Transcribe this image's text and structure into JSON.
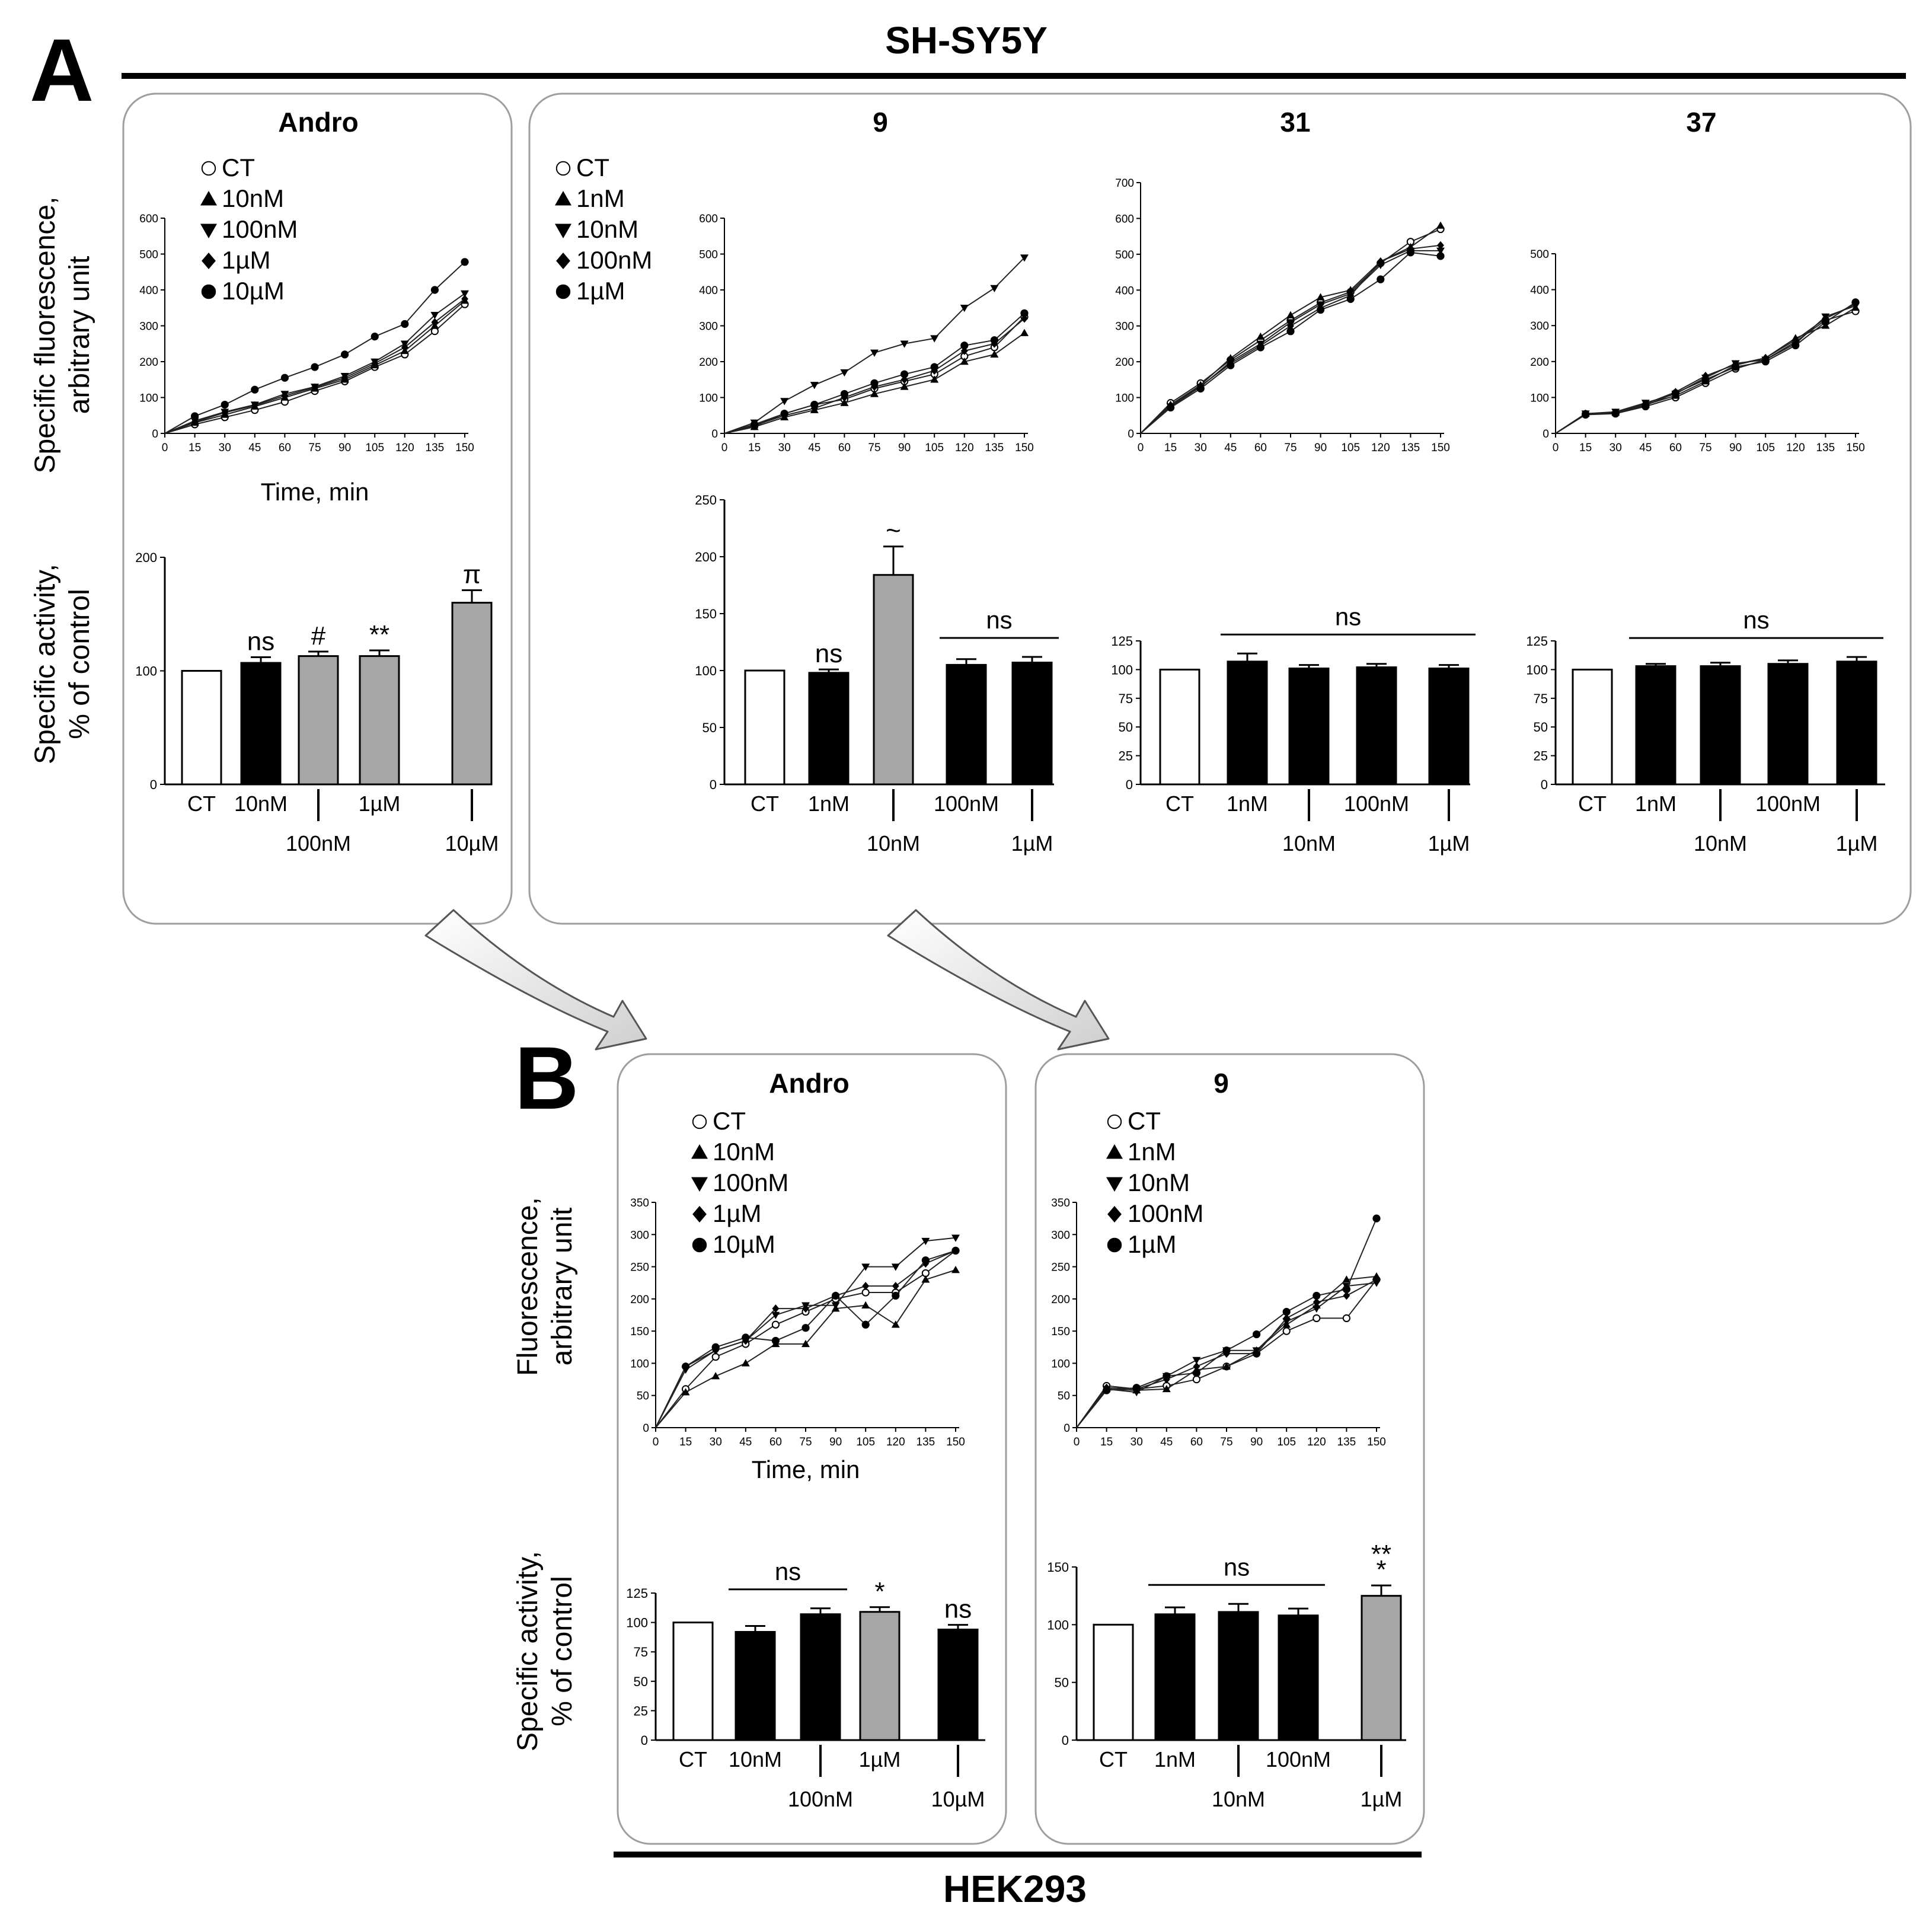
{
  "figure": {
    "label_a": "A",
    "label_b": "B",
    "cell_a": "SH-SY5Y",
    "cell_b": "HEK293"
  },
  "axis_labels": {
    "a_line_y1": "Specific fluorescence,",
    "a_line_y2": "arbitrary unit",
    "a_bar_y1": "Specific activity,",
    "a_bar_y2": "% of control",
    "b_line_y1": "Fluorescence,",
    "b_line_y2": "arbitrary unit",
    "b_bar_y1": "Specific activity,",
    "b_bar_y2": "% of control",
    "time": "Time, min"
  },
  "colors": {
    "ct": "#ffffff",
    "black": "#000000",
    "grey": "#a6a6a6",
    "panel_border": "#9e9e9e"
  },
  "chart_data": [
    {
      "id": "A_andro_line",
      "type": "line",
      "title": "Andro",
      "xlabel": "Time, min",
      "ylabel": "Specific fluorescence, arbitrary unit",
      "x": [
        0,
        15,
        30,
        45,
        60,
        75,
        90,
        105,
        120,
        135,
        150
      ],
      "xlim": [
        0,
        150
      ],
      "ylim": [
        0,
        600
      ],
      "yticks": [
        0,
        100,
        200,
        300,
        400,
        500,
        600
      ],
      "series": [
        {
          "name": "CT",
          "marker": "circle-open",
          "values": [
            0,
            25,
            45,
            65,
            88,
            118,
            145,
            185,
            220,
            285,
            360
          ]
        },
        {
          "name": "10nM",
          "marker": "triangle-up",
          "values": [
            0,
            30,
            52,
            75,
            100,
            125,
            150,
            190,
            230,
            300,
            370
          ]
        },
        {
          "name": "100nM",
          "marker": "triangle-down",
          "values": [
            0,
            35,
            60,
            80,
            110,
            130,
            160,
            200,
            250,
            330,
            390
          ]
        },
        {
          "name": "1µM",
          "marker": "diamond",
          "values": [
            0,
            32,
            58,
            78,
            105,
            128,
            155,
            195,
            240,
            310,
            375
          ]
        },
        {
          "name": "10µM",
          "marker": "circle-filled",
          "values": [
            0,
            48,
            80,
            122,
            155,
            185,
            220,
            270,
            305,
            400,
            478
          ]
        }
      ]
    },
    {
      "id": "A_9_line",
      "type": "line",
      "title": "9",
      "x": [
        0,
        15,
        30,
        45,
        60,
        75,
        90,
        105,
        120,
        135,
        150
      ],
      "xlim": [
        0,
        150
      ],
      "ylim": [
        0,
        600
      ],
      "yticks": [
        0,
        100,
        200,
        300,
        400,
        500,
        600
      ],
      "series": [
        {
          "name": "CT",
          "marker": "circle-open",
          "values": [
            0,
            20,
            55,
            80,
            95,
            125,
            145,
            165,
            215,
            240,
            325
          ]
        },
        {
          "name": "1nM",
          "marker": "triangle-up",
          "values": [
            0,
            18,
            45,
            65,
            85,
            110,
            130,
            150,
            200,
            220,
            280
          ]
        },
        {
          "name": "10nM",
          "marker": "triangle-down",
          "values": [
            0,
            30,
            90,
            135,
            170,
            225,
            250,
            265,
            350,
            405,
            490
          ]
        },
        {
          "name": "100nM",
          "marker": "diamond",
          "values": [
            0,
            22,
            50,
            70,
            100,
            130,
            150,
            175,
            230,
            250,
            320
          ]
        },
        {
          "name": "1µM",
          "marker": "circle-filled",
          "values": [
            0,
            25,
            55,
            80,
            110,
            140,
            165,
            185,
            245,
            260,
            335
          ]
        }
      ]
    },
    {
      "id": "A_31_line",
      "type": "line",
      "title": "31",
      "x": [
        0,
        15,
        30,
        45,
        60,
        75,
        90,
        105,
        120,
        135,
        150
      ],
      "xlim": [
        0,
        150
      ],
      "ylim": [
        0,
        700
      ],
      "yticks": [
        0,
        100,
        200,
        300,
        400,
        500,
        600,
        700
      ],
      "series": [
        {
          "name": "CT",
          "marker": "circle-open",
          "values": [
            0,
            85,
            140,
            205,
            260,
            315,
            365,
            395,
            475,
            535,
            570
          ]
        },
        {
          "name": "1nM",
          "marker": "triangle-up",
          "values": [
            0,
            80,
            135,
            210,
            270,
            330,
            380,
            400,
            480,
            520,
            580
          ]
        },
        {
          "name": "10nM",
          "marker": "triangle-down",
          "values": [
            0,
            75,
            130,
            200,
            250,
            310,
            360,
            390,
            470,
            510,
            510
          ]
        },
        {
          "name": "100nM",
          "marker": "diamond",
          "values": [
            0,
            78,
            132,
            195,
            245,
            300,
            350,
            385,
            480,
            515,
            525
          ]
        },
        {
          "name": "1µM",
          "marker": "circle-filled",
          "values": [
            0,
            72,
            125,
            190,
            240,
            285,
            345,
            375,
            430,
            505,
            495
          ]
        }
      ]
    },
    {
      "id": "A_37_line",
      "type": "line",
      "title": "37",
      "x": [
        0,
        15,
        30,
        45,
        60,
        75,
        90,
        105,
        120,
        135,
        150
      ],
      "xlim": [
        0,
        150
      ],
      "ylim": [
        0,
        500
      ],
      "yticks": [
        0,
        100,
        200,
        300,
        400,
        500
      ],
      "series": [
        {
          "name": "CT",
          "marker": "circle-open",
          "values": [
            0,
            52,
            55,
            75,
            100,
            140,
            180,
            205,
            255,
            315,
            340
          ]
        },
        {
          "name": "1nM",
          "marker": "triangle-up",
          "values": [
            0,
            55,
            58,
            80,
            105,
            145,
            190,
            210,
            265,
            300,
            350
          ]
        },
        {
          "name": "10nM",
          "marker": "triangle-down",
          "values": [
            0,
            55,
            60,
            85,
            110,
            155,
            195,
            205,
            250,
            325,
            355
          ]
        },
        {
          "name": "100nM",
          "marker": "diamond",
          "values": [
            0,
            53,
            57,
            82,
            115,
            160,
            192,
            210,
            260,
            320,
            360
          ]
        },
        {
          "name": "1µM",
          "marker": "circle-filled",
          "values": [
            0,
            54,
            56,
            78,
            112,
            150,
            185,
            200,
            245,
            310,
            365
          ]
        }
      ]
    },
    {
      "id": "A_andro_bar",
      "type": "bar",
      "ylabel": "Specific activity, % of control",
      "categories": [
        "CT",
        "10nM",
        "100nM",
        "1µM",
        "10µM"
      ],
      "ylim": [
        0,
        200
      ],
      "yticks": [
        0,
        100,
        200
      ],
      "values": [
        100,
        107,
        113,
        113,
        160
      ],
      "errors": [
        0,
        5,
        4,
        5,
        11
      ],
      "fills": [
        "ct",
        "black",
        "grey",
        "grey",
        "grey"
      ],
      "annotations": [
        "",
        "ns",
        "#",
        "**",
        "π"
      ],
      "group_labels": []
    },
    {
      "id": "A_9_bar",
      "type": "bar",
      "categories": [
        "CT",
        "1nM",
        "10nM",
        "100nM",
        "1µM"
      ],
      "ylim": [
        0,
        250
      ],
      "yticks": [
        0,
        50,
        100,
        150,
        200,
        250
      ],
      "values": [
        100,
        98,
        184,
        105,
        107
      ],
      "errors": [
        0,
        3,
        25,
        5,
        5
      ],
      "fills": [
        "ct",
        "black",
        "grey",
        "black",
        "black"
      ],
      "annotations": [
        "",
        "ns",
        "~",
        "",
        ""
      ],
      "group_labels": [
        {
          "text": "ns",
          "from": 3,
          "to": 4
        }
      ]
    },
    {
      "id": "A_31_bar",
      "type": "bar",
      "categories": [
        "CT",
        "1nM",
        "10nM",
        "100nM",
        "1µM"
      ],
      "ylim": [
        0,
        125
      ],
      "yticks": [
        0,
        25,
        50,
        75,
        100,
        125
      ],
      "values": [
        100,
        107,
        101,
        102,
        101
      ],
      "errors": [
        0,
        7,
        3,
        3,
        3
      ],
      "fills": [
        "ct",
        "black",
        "black",
        "black",
        "black"
      ],
      "annotations": [
        "",
        "",
        "",
        "",
        ""
      ],
      "group_labels": [
        {
          "text": "ns",
          "from": 1,
          "to": 4
        }
      ]
    },
    {
      "id": "A_37_bar",
      "type": "bar",
      "categories": [
        "CT",
        "1nM",
        "10nM",
        "100nM",
        "1µM"
      ],
      "ylim": [
        0,
        125
      ],
      "yticks": [
        0,
        25,
        50,
        75,
        100,
        125
      ],
      "values": [
        100,
        103,
        103,
        105,
        107
      ],
      "errors": [
        0,
        2,
        3,
        3,
        4
      ],
      "fills": [
        "ct",
        "black",
        "black",
        "black",
        "black"
      ],
      "annotations": [
        "",
        "",
        "",
        "",
        ""
      ],
      "group_labels": [
        {
          "text": "ns",
          "from": 1,
          "to": 4
        }
      ]
    },
    {
      "id": "B_andro_line",
      "type": "line",
      "title": "Andro",
      "xlabel": "Time, min",
      "ylabel": "Fluorescence, arbitrary unit",
      "x": [
        0,
        15,
        30,
        45,
        60,
        75,
        90,
        105,
        120,
        135,
        150
      ],
      "xlim": [
        0,
        150
      ],
      "ylim": [
        0,
        350
      ],
      "yticks": [
        0,
        50,
        100,
        150,
        200,
        250,
        300,
        350
      ],
      "series": [
        {
          "name": "CT",
          "marker": "circle-open",
          "values": [
            0,
            60,
            110,
            130,
            160,
            180,
            200,
            210,
            210,
            240,
            275
          ]
        },
        {
          "name": "10nM",
          "marker": "triangle-up",
          "values": [
            0,
            55,
            80,
            100,
            130,
            130,
            185,
            190,
            160,
            230,
            245
          ]
        },
        {
          "name": "100nM",
          "marker": "triangle-down",
          "values": [
            0,
            90,
            120,
            135,
            175,
            190,
            190,
            250,
            250,
            290,
            295
          ]
        },
        {
          "name": "1µM",
          "marker": "diamond",
          "values": [
            0,
            95,
            120,
            135,
            185,
            185,
            205,
            220,
            220,
            255,
            275
          ]
        },
        {
          "name": "10µM",
          "marker": "circle-filled",
          "values": [
            0,
            95,
            125,
            140,
            135,
            155,
            205,
            160,
            205,
            260,
            275
          ]
        }
      ]
    },
    {
      "id": "B_9_line",
      "type": "line",
      "title": "9",
      "x": [
        0,
        15,
        30,
        45,
        60,
        75,
        90,
        105,
        120,
        135,
        150
      ],
      "xlim": [
        0,
        150
      ],
      "ylim": [
        0,
        350
      ],
      "yticks": [
        0,
        50,
        100,
        150,
        200,
        250,
        300,
        350
      ],
      "series": [
        {
          "name": "CT",
          "marker": "circle-open",
          "values": [
            0,
            65,
            60,
            65,
            75,
            95,
            115,
            150,
            170,
            170,
            230
          ]
        },
        {
          "name": "1nM",
          "marker": "triangle-up",
          "values": [
            0,
            60,
            58,
            60,
            90,
            95,
            120,
            160,
            190,
            230,
            235
          ]
        },
        {
          "name": "10nM",
          "marker": "triangle-down",
          "values": [
            0,
            60,
            55,
            80,
            105,
            120,
            120,
            165,
            185,
            220,
            225
          ]
        },
        {
          "name": "100nM",
          "marker": "diamond",
          "values": [
            0,
            62,
            60,
            75,
            95,
            115,
            115,
            170,
            195,
            205,
            230
          ]
        },
        {
          "name": "1µM",
          "marker": "circle-filled",
          "values": [
            0,
            58,
            62,
            80,
            85,
            120,
            145,
            180,
            205,
            215,
            325
          ]
        }
      ]
    },
    {
      "id": "B_andro_bar",
      "type": "bar",
      "ylabel": "Specific activity, % of control",
      "categories": [
        "CT",
        "10nM",
        "100nM",
        "1µM",
        "10µM"
      ],
      "ylim": [
        0,
        125
      ],
      "yticks": [
        0,
        25,
        50,
        75,
        100,
        125
      ],
      "values": [
        100,
        92,
        107,
        109,
        94
      ],
      "errors": [
        0,
        5,
        5,
        4,
        4
      ],
      "fills": [
        "ct",
        "black",
        "black",
        "grey",
        "black"
      ],
      "annotations": [
        "",
        "",
        "",
        "*",
        "ns"
      ],
      "group_labels": [
        {
          "text": "ns",
          "from": 1,
          "to": 2
        }
      ]
    },
    {
      "id": "B_9_bar",
      "type": "bar",
      "categories": [
        "CT",
        "1nM",
        "10nM",
        "100nM",
        "1µM"
      ],
      "ylim": [
        0,
        150
      ],
      "yticks": [
        0,
        50,
        100,
        150
      ],
      "values": [
        100,
        109,
        111,
        108,
        125
      ],
      "errors": [
        0,
        6,
        7,
        6,
        9
      ],
      "fills": [
        "ct",
        "black",
        "black",
        "black",
        "grey"
      ],
      "annotations": [
        "",
        "",
        "",
        "",
        "**\n*"
      ],
      "group_labels": [
        {
          "text": "ns",
          "from": 1,
          "to": 3
        }
      ]
    }
  ]
}
